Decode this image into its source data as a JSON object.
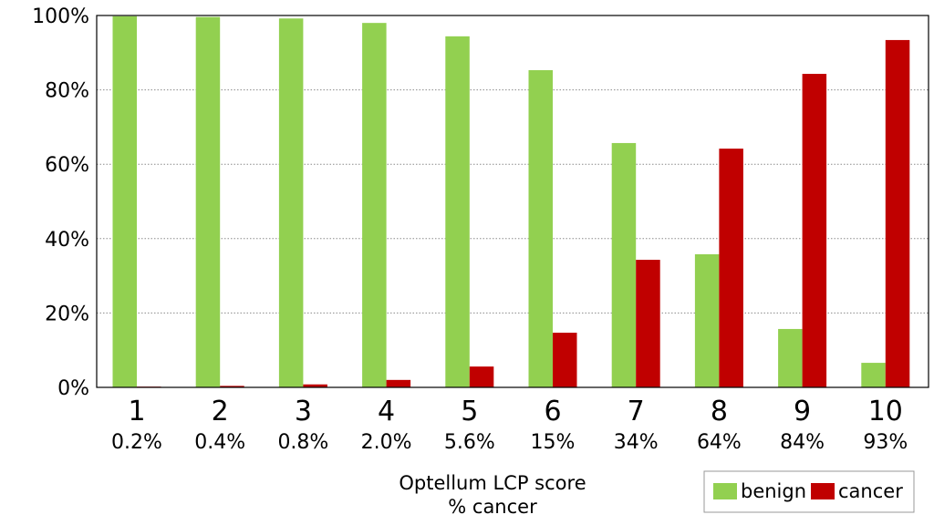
{
  "chart_data": {
    "type": "bar",
    "title": "",
    "xlabel_lines": [
      "Optellum LCP score",
      "% cancer"
    ],
    "ylabel": "",
    "ylim": [
      0,
      100
    ],
    "yticks": [
      0,
      20,
      40,
      60,
      80,
      100
    ],
    "ytick_labels": [
      "0%",
      "20%",
      "40%",
      "60%",
      "80%",
      "100%"
    ],
    "categories": [
      "1",
      "2",
      "3",
      "4",
      "5",
      "6",
      "7",
      "8",
      "9",
      "10"
    ],
    "category_sublabels": [
      "0.2%",
      "0.4%",
      "0.8%",
      "2.0%",
      "5.6%",
      "15%",
      "34%",
      "64%",
      "84%",
      "93%"
    ],
    "series": [
      {
        "name": "benign",
        "color": "#92d050",
        "values": [
          99.8,
          99.6,
          99.2,
          98.0,
          94.4,
          85.3,
          65.7,
          35.8,
          15.7,
          6.6
        ]
      },
      {
        "name": "cancer",
        "color": "#c00000",
        "values": [
          0.2,
          0.4,
          0.8,
          2.0,
          5.6,
          14.7,
          34.3,
          64.2,
          84.3,
          93.4
        ]
      }
    ],
    "grid": true,
    "legend": [
      "benign",
      "cancer"
    ],
    "legend_position": "bottom-right"
  }
}
